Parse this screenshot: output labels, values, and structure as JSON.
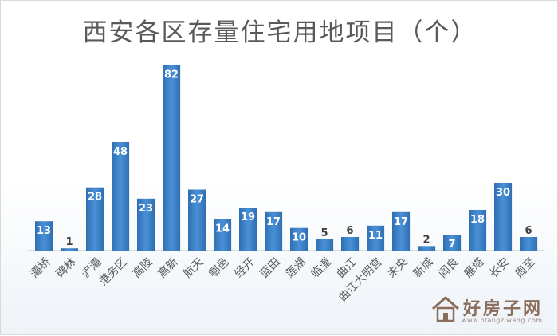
{
  "chart_data": {
    "type": "bar",
    "title": "西安各区存量住宅用地项目（个）",
    "xlabel": "",
    "ylabel": "",
    "categories": [
      "灞桥",
      "碑林",
      "浐灞",
      "港务区",
      "高陵",
      "高新",
      "航天",
      "鄠邑",
      "经开",
      "蓝田",
      "莲湖",
      "临潼",
      "曲江",
      "曲江大明宫",
      "未央",
      "新城",
      "阎良",
      "雁塔",
      "长安",
      "周至"
    ],
    "values": [
      13,
      1,
      28,
      48,
      23,
      82,
      27,
      14,
      19,
      17,
      10,
      5,
      6,
      11,
      17,
      2,
      7,
      18,
      30,
      6
    ],
    "ylim": [
      0,
      90
    ],
    "grid": false,
    "legend": "none",
    "data_labels": true,
    "colors": {
      "bar": "#4a90d6",
      "bar_dark": "#2f6fb3",
      "label": "#ffffff",
      "label_outside": "#404040",
      "axis": "#bfbfbf",
      "tick": "#595959"
    }
  },
  "watermark": {
    "text": "好房子网",
    "url": "www.hfangziwang.com"
  }
}
